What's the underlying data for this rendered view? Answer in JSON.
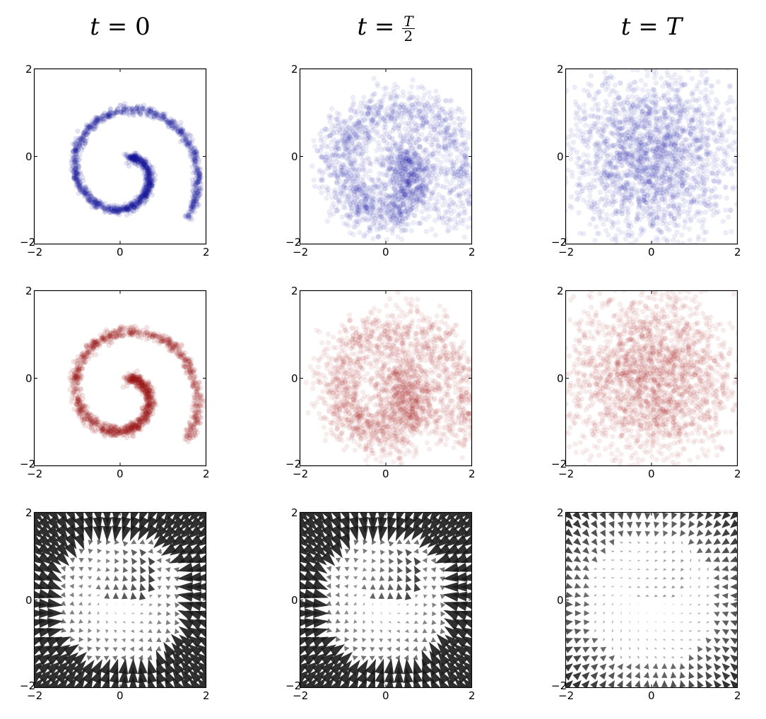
{
  "titles": [
    "t = 0",
    "t = T/2",
    "t = T"
  ],
  "title_parts": {
    "col0": {
      "lhs": "t = ",
      "rhs": "0"
    },
    "col1": {
      "lhs": "t = ",
      "num": "T",
      "den": "2"
    },
    "col2": {
      "lhs": "t = ",
      "rhs": "T"
    }
  },
  "ticks": {
    "min": "−2",
    "mid": "0",
    "max": "2"
  },
  "colors": {
    "blue": "#1a1aa0",
    "red": "#a01a1a",
    "arrow": "#1a1a1a"
  },
  "chart_data": [
    {
      "type": "scatter",
      "row": 0,
      "col": 0,
      "title": "t = 0",
      "series": "blue",
      "description": "Tight spiral (data distribution)",
      "xlim": [
        -2,
        2
      ],
      "ylim": [
        -2,
        2
      ],
      "xticks": [
        -2,
        0,
        2
      ],
      "yticks": [
        -2,
        0,
        2
      ],
      "spread": 0.05
    },
    {
      "type": "scatter",
      "row": 0,
      "col": 1,
      "title": "t = T/2",
      "series": "blue",
      "description": "Diffused spiral",
      "xlim": [
        -2,
        2
      ],
      "ylim": [
        -2,
        2
      ],
      "xticks": [
        -2,
        0,
        2
      ],
      "yticks": [
        -2,
        0,
        2
      ],
      "spread": 0.3
    },
    {
      "type": "scatter",
      "row": 0,
      "col": 2,
      "title": "t = T",
      "series": "blue",
      "description": "Near-Gaussian noise",
      "xlim": [
        -2,
        2
      ],
      "ylim": [
        -2,
        2
      ],
      "xticks": [
        -2,
        0,
        2
      ],
      "yticks": [
        -2,
        0,
        2
      ],
      "spread": 1.0
    },
    {
      "type": "scatter",
      "row": 1,
      "col": 0,
      "series": "red",
      "description": "Reconstructed spiral",
      "xlim": [
        -2,
        2
      ],
      "ylim": [
        -2,
        2
      ],
      "xticks": [
        -2,
        0,
        2
      ],
      "yticks": [
        -2,
        0,
        2
      ],
      "spread": 0.06
    },
    {
      "type": "scatter",
      "row": 1,
      "col": 1,
      "series": "red",
      "description": "Partially denoised spiral",
      "xlim": [
        -2,
        2
      ],
      "ylim": [
        -2,
        2
      ],
      "xticks": [
        -2,
        0,
        2
      ],
      "yticks": [
        -2,
        0,
        2
      ],
      "spread": 0.32
    },
    {
      "type": "scatter",
      "row": 1,
      "col": 2,
      "series": "red",
      "description": "Noise samples",
      "xlim": [
        -2,
        2
      ],
      "ylim": [
        -2,
        2
      ],
      "xticks": [
        -2,
        0,
        2
      ],
      "yticks": [
        -2,
        0,
        2
      ],
      "spread": 0.9
    },
    {
      "type": "quiver",
      "row": 2,
      "col": 0,
      "description": "Drift vector field at t=0",
      "xlim": [
        -2,
        2
      ],
      "ylim": [
        -2,
        2
      ],
      "xticks": [
        -2,
        0,
        2
      ],
      "yticks": [
        -2,
        0,
        2
      ],
      "grid_n": 20,
      "strength": 1.0
    },
    {
      "type": "quiver",
      "row": 2,
      "col": 1,
      "description": "Drift vector field at t=T/2",
      "xlim": [
        -2,
        2
      ],
      "ylim": [
        -2,
        2
      ],
      "xticks": [
        -2,
        0,
        2
      ],
      "yticks": [
        -2,
        0,
        2
      ],
      "grid_n": 20,
      "strength": 1.0
    },
    {
      "type": "quiver",
      "row": 2,
      "col": 2,
      "description": "Drift vector field at t=T (weak)",
      "xlim": [
        -2,
        2
      ],
      "ylim": [
        -2,
        2
      ],
      "xticks": [
        -2,
        0,
        2
      ],
      "yticks": [
        -2,
        0,
        2
      ],
      "grid_n": 20,
      "strength": 0.35
    }
  ]
}
